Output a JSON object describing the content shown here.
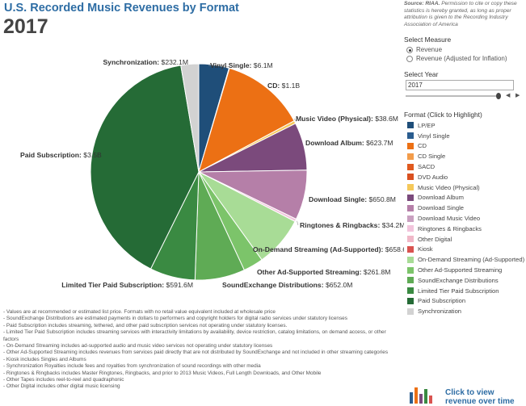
{
  "header": {
    "title": "U.S. Recorded Music Revenues by Format",
    "year": "2017"
  },
  "source": {
    "label": "Source: RIAA.",
    "text": "Permission to cite or copy these statistics is hereby granted, as long as proper attribution is given to the Recording Industry Association of America"
  },
  "controls": {
    "measure_heading": "Select Measure",
    "measure_options": [
      "Revenue",
      "Revenue (Adjusted for Inflation)"
    ],
    "measure_selected": "Revenue",
    "year_heading": "Select Year",
    "year_value": "2017"
  },
  "legend": {
    "heading": "Format (Click to Highlight)",
    "items": [
      {
        "label": "LP/EP",
        "color": "#1f4e79"
      },
      {
        "label": "Vinyl Single",
        "color": "#2a5d8f"
      },
      {
        "label": "CD",
        "color": "#ec7014"
      },
      {
        "label": "CD Single",
        "color": "#f39c4a"
      },
      {
        "label": "SACD",
        "color": "#e05a1f"
      },
      {
        "label": "DVD Audio",
        "color": "#d95020"
      },
      {
        "label": "Music Video (Physical)",
        "color": "#f5c85a"
      },
      {
        "label": "Download Album",
        "color": "#7b4a7c"
      },
      {
        "label": "Download Single",
        "color": "#b57fa8"
      },
      {
        "label": "Download Music Video",
        "color": "#c9a0c0"
      },
      {
        "label": "Ringtones & Ringbacks",
        "color": "#f2c4dc"
      },
      {
        "label": "Other Digital",
        "color": "#f0b8c8"
      },
      {
        "label": "Kiosk",
        "color": "#d9534f"
      },
      {
        "label": "On-Demand Streaming (Ad-Supported)",
        "color": "#a8dc96"
      },
      {
        "label": "Other Ad-Supported Streaming",
        "color": "#7cc46a"
      },
      {
        "label": "SoundExchange Distributions",
        "color": "#5fab55"
      },
      {
        "label": "Limited Tier Paid Subscription",
        "color": "#3a8a42"
      },
      {
        "label": "Paid Subscription",
        "color": "#256b36"
      },
      {
        "label": "Synchronization",
        "color": "#d2d2d2"
      }
    ]
  },
  "chart_data": {
    "type": "pie",
    "title": "U.S. Recorded Music Revenues by Format",
    "subtitle": "2017",
    "slices": [
      {
        "name": "LP/EP",
        "label": "",
        "value": 395.0,
        "color": "#1f4e79"
      },
      {
        "name": "Vinyl Single",
        "label": "Vinyl Single: $6.1M",
        "value": 6.1,
        "color": "#2a5d8f"
      },
      {
        "name": "CD",
        "label": "CD: $1.1B",
        "value": 1100,
        "color": "#ec7014"
      },
      {
        "name": "Music Video (Physical)",
        "label": "Music Video (Physical): $38.6M",
        "value": 38.6,
        "color": "#f5c85a"
      },
      {
        "name": "Download Album",
        "label": "Download Album: $623.7M",
        "value": 623.7,
        "color": "#7b4a7c"
      },
      {
        "name": "Download Single",
        "label": "Download Single: $650.8M",
        "value": 650.8,
        "color": "#b57fa8"
      },
      {
        "name": "Ringtones & Ringbacks",
        "label": "Ringtones & Ringbacks: $34.2M",
        "value": 34.2,
        "color": "#f2c4dc"
      },
      {
        "name": "On-Demand Streaming (Ad-Supported)",
        "label": "On-Demand Streaming (Ad-Supported): $658.6M",
        "value": 658.6,
        "color": "#a8dc96"
      },
      {
        "name": "Other Ad-Supported Streaming",
        "label": "Other Ad-Supported Streaming: $261.8M",
        "value": 261.8,
        "color": "#7cc46a"
      },
      {
        "name": "SoundExchange Distributions",
        "label": "SoundExchange Distributions: $652.0M",
        "value": 652.0,
        "color": "#5fab55"
      },
      {
        "name": "Limited Tier Paid Subscription",
        "label": "Limited Tier Paid Subscription: $591.6M",
        "value": 591.6,
        "color": "#3a8a42"
      },
      {
        "name": "Paid Subscription",
        "label": "Paid Subscription: $3.5B",
        "value": 3500,
        "color": "#256b36"
      },
      {
        "name": "Synchronization",
        "label": "Synchronization: $232.1M",
        "value": 232.1,
        "color": "#d2d2d2"
      }
    ]
  },
  "notes": [
    "- Values are at recommended or estimated list price. Formats with no retail value equivalent included at wholesale price",
    "- SoundExchange Distributions are estimated payments in dollars to performers and copyright holders for digital radio services under statutory licenses",
    "- Paid Subscription includes streaming, tethered, and other paid subscription services not operating under statutory licenses.",
    "- Limited Tier Paid Subscription includes streaming services with interactivity limitations by availability, device restriction, catalog limitations, on demand access, or other factors",
    "- On-Demand Streaming includes ad-supported audio and music video services not operating under statutory licenses",
    "- Other Ad-Supported Streaming includes revenues from services paid directly that are not distributed by SoundExchange and not included in other streaming categories",
    "- Kiosk includes Singles and Albums",
    "- Synchronization Royalties include fees and royalties from synchronization of sound recordings with other media",
    "- Ringtones & Ringbacks includes Master Ringtones, Ringbacks, and prior to 2013 Music Videos, Full Length Downloads, and Other Mobile",
    "- Other Tapes includes reel-to-reel and quadraphonic",
    "- Other Digital includes other digital music licensing"
  ],
  "cta": {
    "text": "Click to view revenue over time"
  }
}
